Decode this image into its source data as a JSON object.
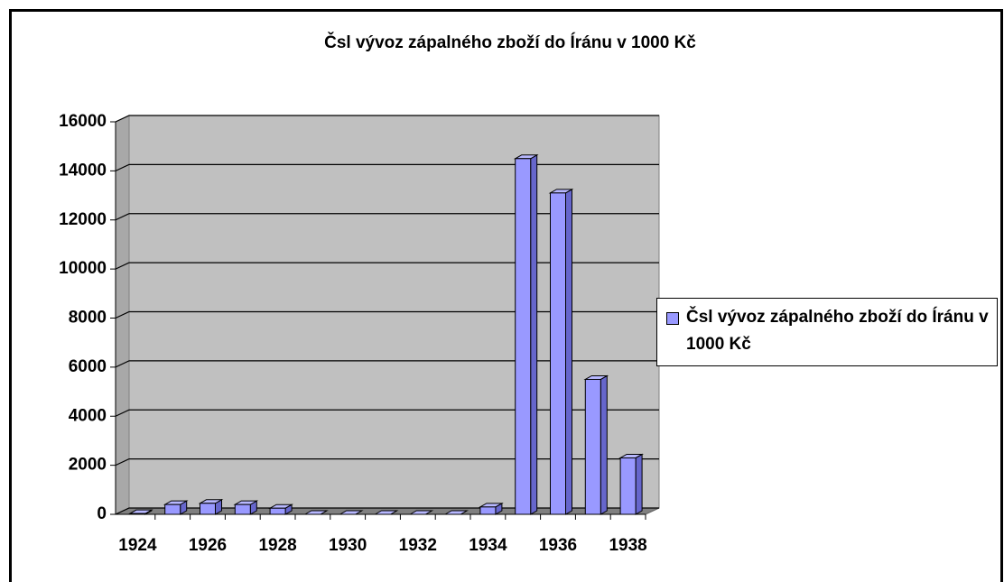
{
  "chart_data": {
    "type": "bar3d",
    "title": "Čsl vývoz zápalného zboží do Íránu v 1000 Kč",
    "categories": [
      "1924",
      null,
      "1926",
      null,
      "1928",
      null,
      "1930",
      null,
      "1932",
      null,
      "1934",
      null,
      "1936",
      null,
      "1938"
    ],
    "series": [
      {
        "name": "Čsl vývoz zápalného zboží do Íránu v 1000 Kč",
        "color": "#9999ff",
        "values": [
          30,
          400,
          450,
          400,
          250,
          0,
          0,
          0,
          0,
          0,
          300,
          14500,
          13100,
          5500,
          2300
        ]
      }
    ],
    "ylim": [
      0,
      16000
    ],
    "yticks": [
      0,
      2000,
      4000,
      6000,
      8000,
      10000,
      12000,
      14000,
      16000
    ],
    "grid": true,
    "legend": "right"
  }
}
